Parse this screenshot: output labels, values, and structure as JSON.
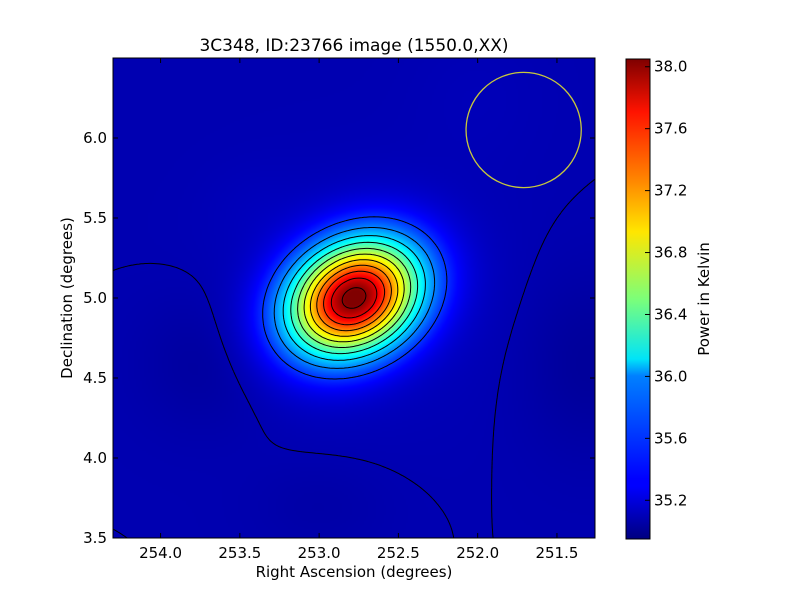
{
  "chart_data": {
    "type": "heatmap",
    "title": "3C348, ID:23766 image (1550.0,XX)",
    "xlabel": "Right Ascension (degrees)",
    "ylabel": "Declination (degrees)",
    "xlim": [
      254.3,
      251.26
    ],
    "ylim": [
      3.5,
      6.5
    ],
    "x_ticks": [
      254.0,
      253.5,
      253.0,
      252.5,
      252.0,
      251.5
    ],
    "x_tick_labels": [
      "254.0",
      "253.5",
      "253.0",
      "252.5",
      "252.0",
      "251.5"
    ],
    "y_ticks": [
      3.5,
      4.0,
      4.5,
      5.0,
      5.5,
      6.0
    ],
    "y_tick_labels": [
      "3.5",
      "4.0",
      "4.5",
      "5.0",
      "5.5",
      "6.0"
    ],
    "peak": {
      "ra": 252.78,
      "dec": 5.0,
      "value": 38.0
    },
    "background_value": 35.1,
    "beam_circle": {
      "ra": 251.71,
      "dec": 6.05,
      "radius_deg": 0.36,
      "color": "#c8c83c"
    },
    "colorbar": {
      "label": "Power in Kelvin",
      "min": 34.95,
      "max": 38.05,
      "ticks": [
        35.2,
        35.6,
        36.0,
        36.4,
        36.8,
        37.2,
        37.6,
        38.0
      ],
      "tick_labels": [
        "35.2",
        "35.6",
        "36.0",
        "36.4",
        "36.8",
        "37.2",
        "37.6",
        "38.0"
      ],
      "colormap": "jet"
    },
    "contour_levels": [
      35.1,
      35.5,
      35.75,
      36.0,
      36.25,
      36.5,
      36.75,
      37.0,
      37.25,
      37.5,
      37.75,
      38.0
    ]
  }
}
